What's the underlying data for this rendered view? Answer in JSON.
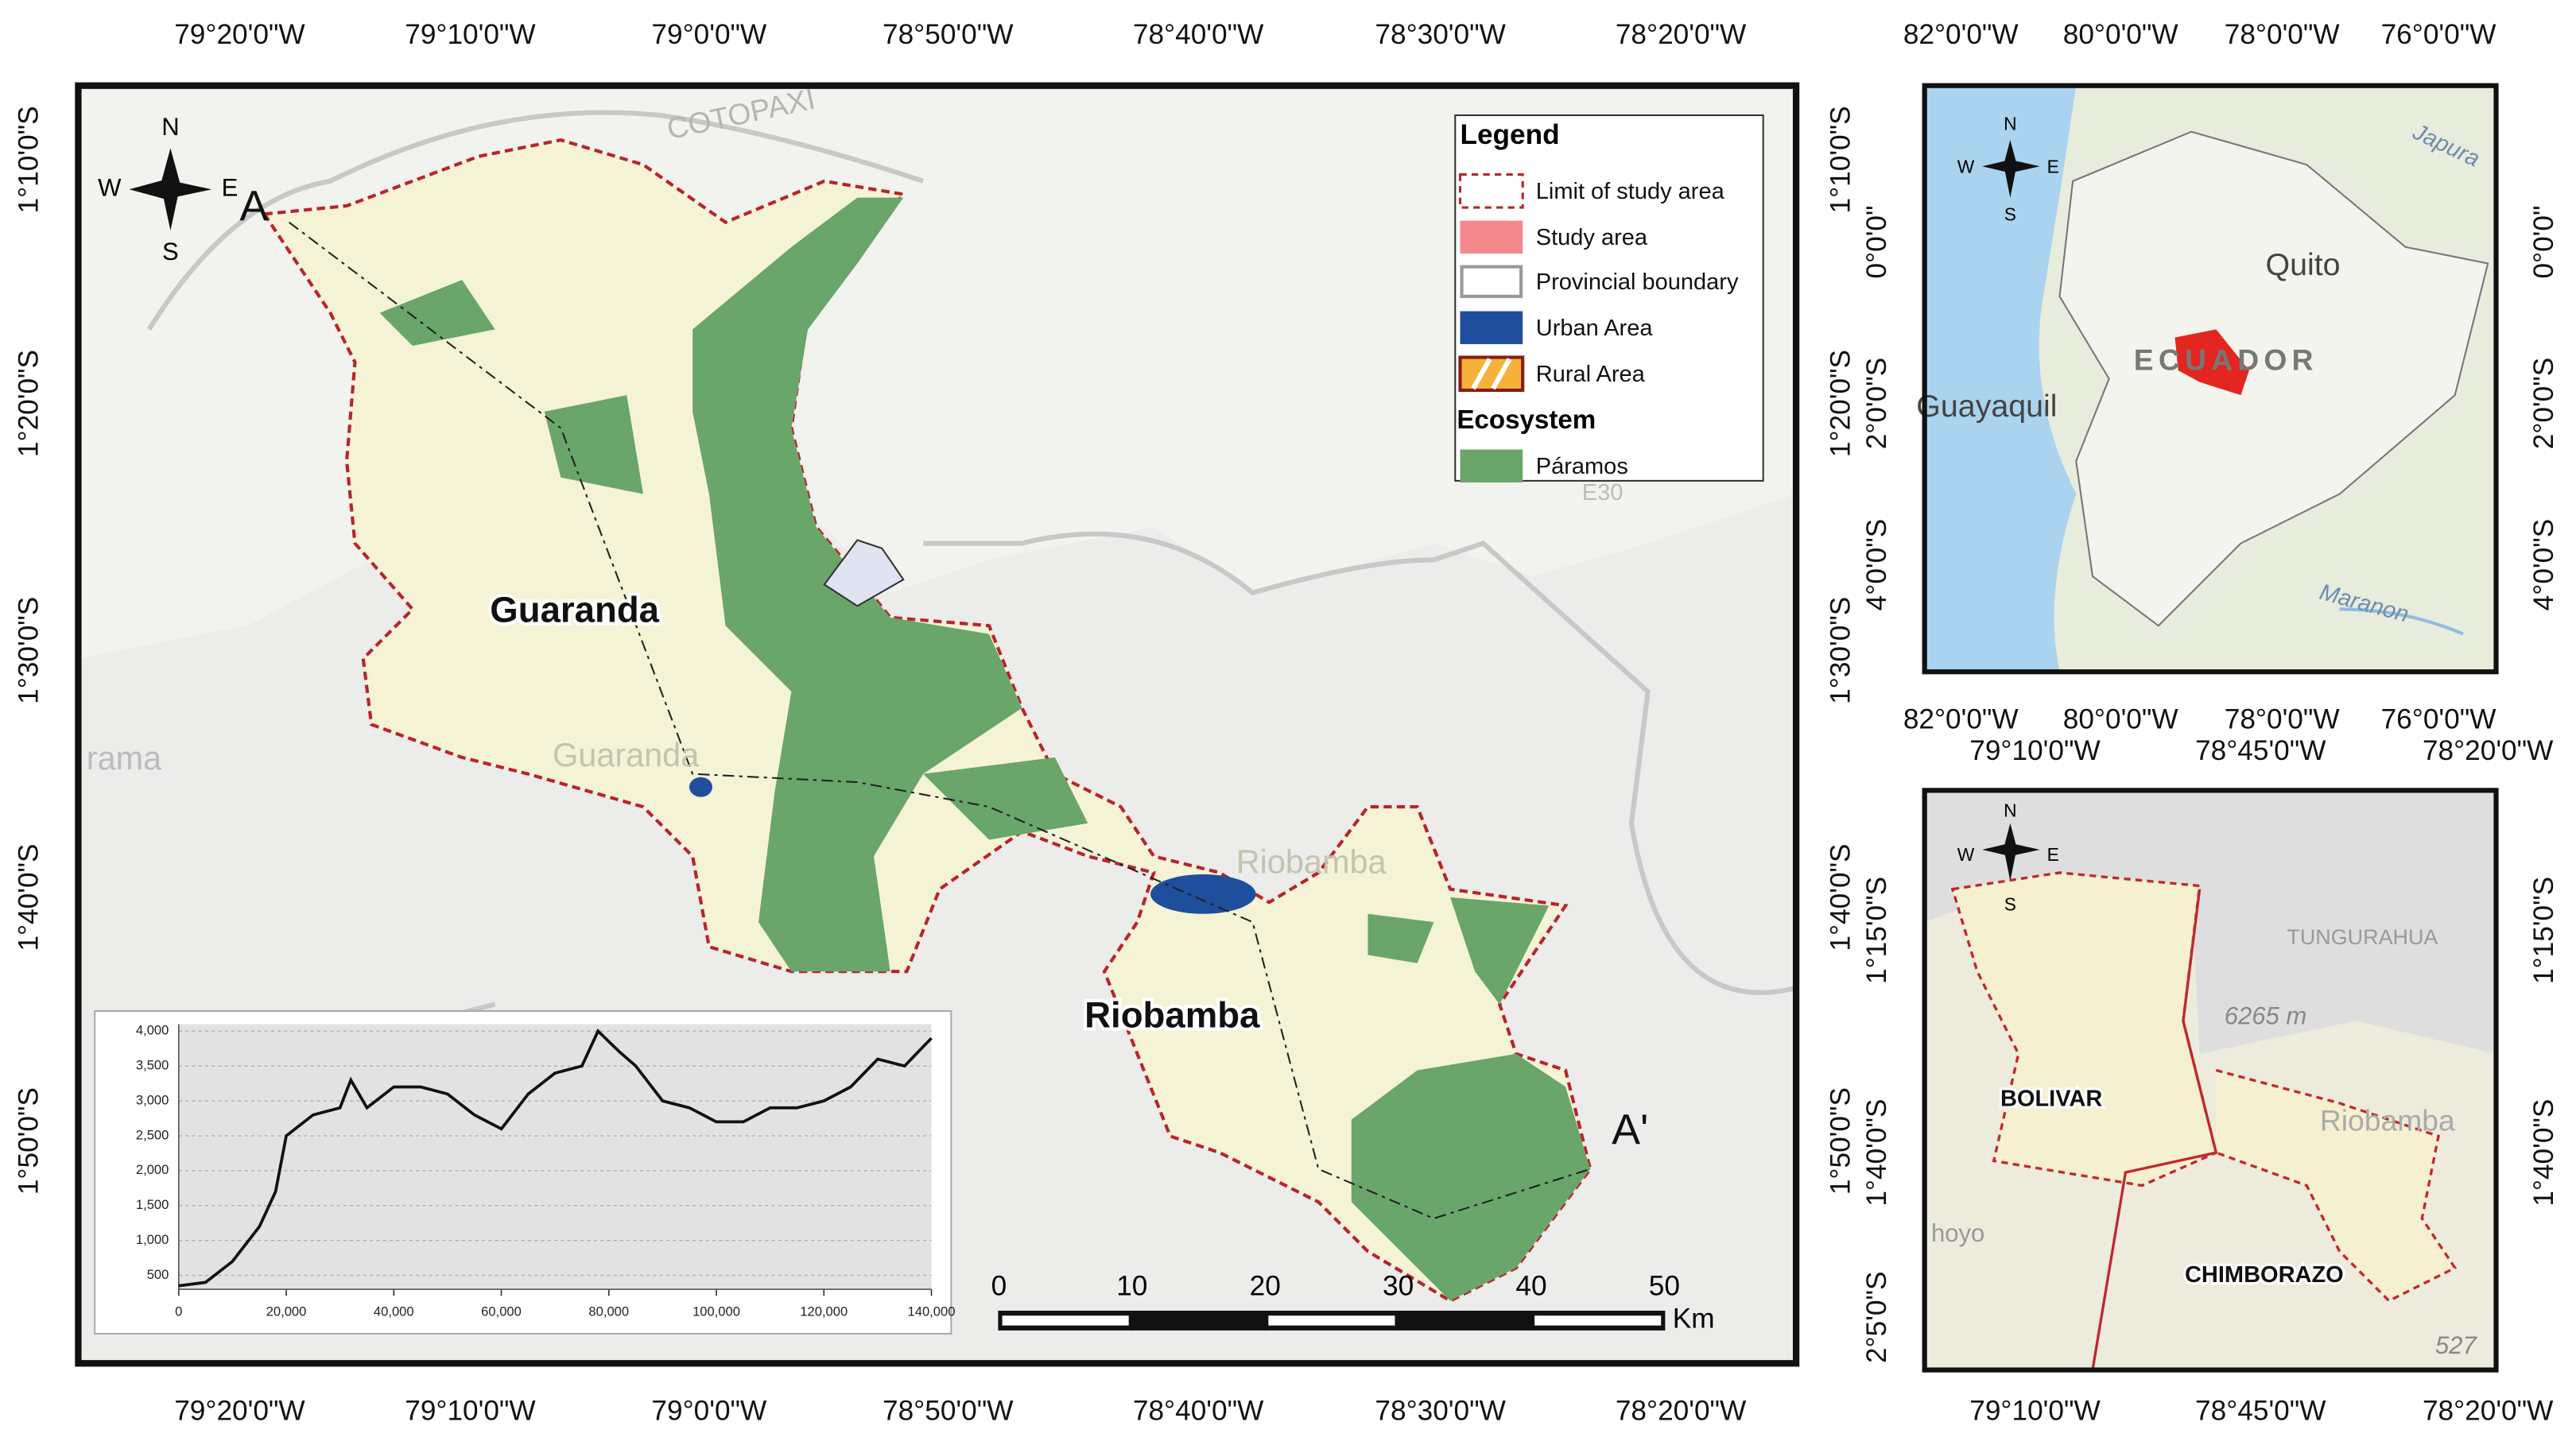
{
  "main_map": {
    "lon_labels": [
      "79°20'0\"W",
      "79°10'0\"W",
      "79°0'0\"W",
      "78°50'0\"W",
      "78°40'0\"W",
      "78°30'0\"W",
      "78°20'0\"W"
    ],
    "lat_labels": [
      "1°10'0\"S",
      "1°20'0\"S",
      "1°30'0\"S",
      "1°40'0\"S",
      "1°50'0\"S"
    ],
    "places": {
      "guaranda": "Guaranda",
      "riobamba": "Riobamba",
      "a": "A",
      "a_prime": "A'"
    },
    "background_labels": [
      "COTOPAXI",
      "Guaranda",
      "Riobamba",
      "rama",
      "E30"
    ],
    "compass": {
      "n": "N",
      "s": "S",
      "e": "E",
      "w": "W"
    }
  },
  "legend": {
    "title": "Legend",
    "items": [
      "Limit of study area",
      "Study area",
      "Provincial boundary",
      "Urban Area",
      "Rural Area"
    ],
    "ecosystem_title": "Ecosystem",
    "ecosystem_items": [
      "Páramos"
    ]
  },
  "scale_bar": {
    "ticks": [
      0,
      10,
      20,
      30,
      40,
      50
    ],
    "unit": "Km"
  },
  "profile": {
    "xlim": [
      0,
      140000
    ],
    "ylim": [
      300,
      4100
    ],
    "xticks": [
      0,
      {
        "value": 20000,
        "label": "20,000"
      },
      {
        "value": 40000,
        "label": "40,000"
      },
      {
        "value": 60000,
        "label": "60,000"
      },
      {
        "value": 80000,
        "label": "80,000"
      },
      {
        "value": 100000,
        "label": "100,000"
      },
      {
        "value": 120000,
        "label": "120,000"
      },
      {
        "value": 140000,
        "label": "140,000"
      }
    ],
    "yticks": [
      500,
      {
        "value": 1000,
        "label": "1,000"
      },
      {
        "value": 1500,
        "label": "1,500"
      },
      {
        "value": 2000,
        "label": "2,000"
      },
      {
        "value": 2500,
        "label": "2,500"
      },
      {
        "value": 3000,
        "label": "3,000"
      },
      {
        "value": 3500,
        "label": "3,500"
      },
      {
        "value": 4000,
        "label": "4,000"
      }
    ],
    "distance": [
      0,
      5000,
      10000,
      15000,
      18000,
      20000,
      25000,
      30000,
      32000,
      35000,
      40000,
      45000,
      50000,
      55000,
      60000,
      65000,
      70000,
      75000,
      78000,
      82000,
      85000,
      90000,
      95000,
      100000,
      105000,
      110000,
      115000,
      120000,
      125000,
      130000,
      135000,
      140000
    ],
    "elevation": [
      350,
      400,
      700,
      1200,
      1700,
      2500,
      2800,
      2900,
      3300,
      2900,
      3200,
      3200,
      3100,
      2800,
      2600,
      3100,
      3400,
      3500,
      4000,
      3700,
      3500,
      3000,
      2900,
      2700,
      2700,
      2900,
      2900,
      3000,
      3200,
      3600,
      3500,
      3900
    ]
  },
  "inset_country": {
    "lon_labels": [
      "82°0'0\"W",
      "80°0'0\"W",
      "78°0'0\"W",
      "76°0'0\"W"
    ],
    "lat_labels": [
      "0°0'0\"",
      "2°0'0\"S",
      "4°0'0\"S"
    ],
    "places": {
      "quito": "Quito",
      "guayaquil": "Guayaquil",
      "ecuador": "ECUADOR",
      "japura": "Japura",
      "maranon": "Maranon"
    },
    "compass": {
      "n": "N",
      "s": "S",
      "e": "E",
      "w": "W"
    }
  },
  "inset_region": {
    "lon_labels": [
      "79°10'0\"W",
      "78°45'0\"W",
      "78°20'0\"W"
    ],
    "lat_labels_left": [
      "1°15'0\"S",
      "1°40'0\"S",
      "2°5'0\"S"
    ],
    "lat_labels_right": [
      "1°15'0\"S",
      "1°40'0\"S"
    ],
    "places": {
      "bolivar": "BOLIVAR",
      "chimborazo": "CHIMBORAZO",
      "tungurahua": "TUNGURAHUA",
      "peak": "6265 m",
      "riobamba": "Riobamba",
      "elev": "527",
      "hoyo": "hoyo"
    },
    "compass": {
      "n": "N",
      "s": "S",
      "e": "E",
      "w": "W"
    }
  }
}
